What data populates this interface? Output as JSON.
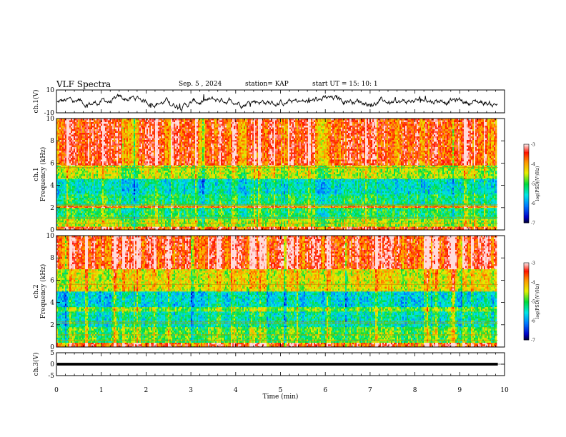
{
  "header": {
    "title": "VLF Spectra",
    "date": "Sep. 5 , 2024",
    "station": "station= KAP",
    "start": "start  UT =  15: 10: 1"
  },
  "chart_data": [
    {
      "type": "line",
      "panel": "ch1-waveform",
      "ylabel": "ch.1(V)",
      "ylim": [
        -10,
        10
      ],
      "yticks": [
        {
          "v": 10,
          "label": "10"
        },
        {
          "v": -10,
          "label": "-10"
        }
      ],
      "xlim": [
        0,
        10
      ],
      "data_extent_min": [
        0,
        9.85
      ],
      "baseline": -0.5,
      "amplitude": 3.5,
      "color": "#000000"
    },
    {
      "type": "heatmap",
      "panel": "ch1-spectrogram",
      "ylabel_line1": "ch.1",
      "ylabel_line2": "Frequency (kHz)",
      "ylim": [
        0,
        10
      ],
      "yticks": [
        {
          "v": 0,
          "label": "0"
        },
        {
          "v": 2,
          "label": "2"
        },
        {
          "v": 4,
          "label": "4"
        },
        {
          "v": 6,
          "label": "6"
        },
        {
          "v": 8,
          "label": "8"
        },
        {
          "v": 10,
          "label": "10"
        }
      ],
      "xlim": [
        0,
        10
      ],
      "data_extent_min": [
        0,
        9.85
      ],
      "colorbar": {
        "label": "log(PSD)(V²/Hz)",
        "range": [
          -7,
          -3
        ],
        "ticks": [
          {
            "v": -3,
            "label": "-3"
          },
          {
            "v": -4,
            "label": "-4"
          },
          {
            "v": -5,
            "label": "-5"
          },
          {
            "v": -6,
            "label": "-6"
          },
          {
            "v": -7,
            "label": "-7"
          }
        ]
      },
      "bands": [
        {
          "f": [
            0,
            0.3
          ],
          "level": -3.6
        },
        {
          "f": [
            0.3,
            1.0
          ],
          "level": -4.6
        },
        {
          "f": [
            1.0,
            2.0
          ],
          "level": -5.1
        },
        {
          "f": [
            2.0,
            2.2
          ],
          "level": -3.8
        },
        {
          "f": [
            2.2,
            3.2
          ],
          "level": -5.2
        },
        {
          "f": [
            3.2,
            4.6
          ],
          "level": -5.5
        },
        {
          "f": [
            4.6,
            5.8
          ],
          "level": -4.6
        },
        {
          "f": [
            5.8,
            10.0
          ],
          "level": -3.6
        }
      ]
    },
    {
      "type": "heatmap",
      "panel": "ch2-spectrogram",
      "ylabel_line1": "ch.2",
      "ylabel_line2": "Frequency (kHz)",
      "ylim": [
        0,
        10
      ],
      "yticks": [
        {
          "v": 0,
          "label": "0"
        },
        {
          "v": 2,
          "label": "2"
        },
        {
          "v": 4,
          "label": "4"
        },
        {
          "v": 6,
          "label": "6"
        },
        {
          "v": 8,
          "label": "8"
        },
        {
          "v": 10,
          "label": "10"
        }
      ],
      "xlim": [
        0,
        10
      ],
      "data_extent_min": [
        0,
        9.85
      ],
      "colorbar": {
        "label": "log(PSD)(V²/Hz)",
        "range": [
          -7,
          -3
        ],
        "ticks": [
          {
            "v": -3,
            "label": "-3"
          },
          {
            "v": -4,
            "label": "-4"
          },
          {
            "v": -5,
            "label": "-5"
          },
          {
            "v": -6,
            "label": "-6"
          },
          {
            "v": -7,
            "label": "-7"
          }
        ]
      },
      "bands": [
        {
          "f": [
            0,
            0.4
          ],
          "level": -3.6
        },
        {
          "f": [
            0.4,
            1.8
          ],
          "level": -4.9
        },
        {
          "f": [
            1.8,
            3.2
          ],
          "level": -5.4
        },
        {
          "f": [
            3.2,
            3.6
          ],
          "level": -4.8
        },
        {
          "f": [
            3.6,
            5.0
          ],
          "level": -5.6
        },
        {
          "f": [
            5.0,
            7.0
          ],
          "level": -4.4
        },
        {
          "f": [
            7.0,
            10.0
          ],
          "level": -3.5
        }
      ]
    },
    {
      "type": "line",
      "panel": "ch3-waveform",
      "ylabel": "ch.3(V)",
      "ylim": [
        -5,
        5
      ],
      "yticks": [
        {
          "v": 5,
          "label": "5"
        },
        {
          "v": 0,
          "label": "0"
        },
        {
          "v": -5,
          "label": "-5"
        }
      ],
      "xlim": [
        0,
        10
      ],
      "data_extent_min": [
        0,
        9.85
      ],
      "band": [
        -0.6,
        0.6
      ],
      "color": "#000000"
    }
  ],
  "xaxis": {
    "label": "Time (min)",
    "ticks": [
      "0",
      "1",
      "2",
      "3",
      "4",
      "5",
      "6",
      "7",
      "8",
      "9",
      "10"
    ]
  }
}
